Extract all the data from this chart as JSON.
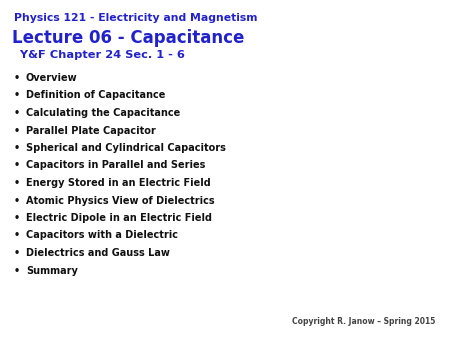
{
  "background_color": "#ffffff",
  "title_line1": "Physics 121 - Electricity and Magnetism",
  "title_line2": "Lecture 06 - Capacitance",
  "title_line3": " Y&F Chapter 24 Sec. 1 - 6",
  "title_color": "#2222cc",
  "bullet_items": [
    "Overview",
    "Definition of Capacitance",
    "Calculating the Capacitance",
    "Parallel Plate Capacitor",
    "Spherical and Cylindrical Capacitors",
    "Capacitors in Parallel and Series",
    "Energy Stored in an Electric Field",
    "Atomic Physics View of Dielectrics",
    "Electric Dipole in an Electric Field",
    "Capacitors with a Dielectric",
    "Dielectrics and Gauss Law",
    "Summary"
  ],
  "bullet_color": "#111111",
  "bullet_fontsize": 7.0,
  "title1_fontsize": 7.8,
  "title2_fontsize": 12.0,
  "title3_fontsize": 8.2,
  "copyright_text": "Copyright R. Janow – Spring 2015",
  "copyright_color": "#444444",
  "copyright_fontsize": 5.5
}
